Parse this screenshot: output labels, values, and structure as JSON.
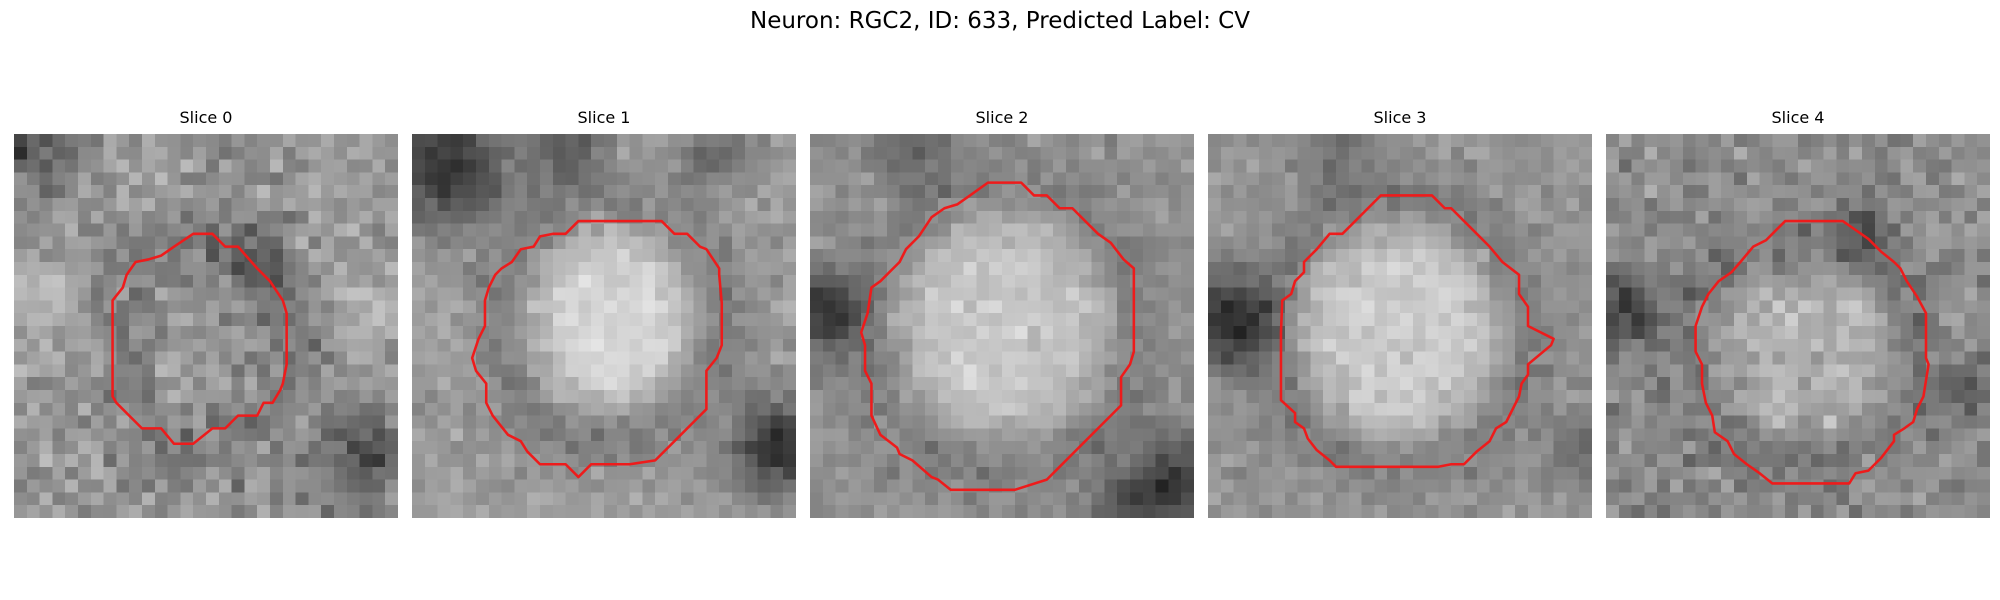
{
  "figure": {
    "title": "Neuron: RGC2, ID: 633, Predicted Label: CV"
  },
  "colors": {
    "contour": "#ee1b1b",
    "colormap": "gray"
  },
  "slices": [
    {
      "title": "Slice 0",
      "seed": 11,
      "base": 150,
      "inner_level": 150,
      "ring_level": 105,
      "ring_width": 2.8,
      "noise": 65,
      "center": [
        15.0,
        16.5
      ],
      "radius": [
        6.6,
        8.2
      ],
      "dark_regions": [
        [
          1.5,
          1.5,
          3.5,
          60
        ],
        [
          27.5,
          25,
          3.5,
          70
        ],
        [
          19,
          10,
          3,
          35
        ]
      ],
      "bright_regions": [
        [
          2,
          12,
          2.5,
          40
        ],
        [
          28,
          14,
          3,
          30
        ]
      ],
      "contour": [
        [
          14,
          7.8
        ],
        [
          15.5,
          7.8
        ],
        [
          16.5,
          8.8
        ],
        [
          17.5,
          8.8
        ],
        [
          19,
          10.5
        ],
        [
          20,
          11.5
        ],
        [
          21,
          13
        ],
        [
          21.3,
          14
        ],
        [
          21.3,
          18
        ],
        [
          21,
          19.5
        ],
        [
          20.8,
          20
        ],
        [
          20.2,
          21
        ],
        [
          19.5,
          21
        ],
        [
          19,
          22
        ],
        [
          17.5,
          22
        ],
        [
          16.5,
          23
        ],
        [
          15.5,
          23
        ],
        [
          14,
          24.2
        ],
        [
          12.5,
          24.2
        ],
        [
          11.5,
          23
        ],
        [
          10,
          23
        ],
        [
          9,
          22
        ],
        [
          8,
          21
        ],
        [
          7.7,
          20.5
        ],
        [
          7.7,
          13
        ],
        [
          8.5,
          12
        ],
        [
          8.8,
          11
        ],
        [
          9.5,
          10
        ],
        [
          10.5,
          9.8
        ],
        [
          11.5,
          9.5
        ],
        [
          12.5,
          8.8
        ]
      ]
    },
    {
      "title": "Slice 1",
      "seed": 23,
      "base": 155,
      "inner_level": 215,
      "ring_level": 110,
      "ring_width": 3.5,
      "noise": 40,
      "center": [
        15.5,
        14.5
      ],
      "radius": [
        8.5,
        9.2
      ],
      "dark_regions": [
        [
          2.5,
          2.5,
          4.5,
          110
        ],
        [
          28.5,
          24.5,
          3.5,
          110
        ],
        [
          12,
          1,
          3,
          60
        ],
        [
          24,
          1.5,
          3,
          40
        ]
      ],
      "bright_regions": [],
      "contour": [
        [
          13,
          6.8
        ],
        [
          19.5,
          6.8
        ],
        [
          20.5,
          7.8
        ],
        [
          21.5,
          7.8
        ],
        [
          22.5,
          8.8
        ],
        [
          23,
          9
        ],
        [
          24,
          10.5
        ],
        [
          24,
          11
        ],
        [
          24.2,
          13.2
        ],
        [
          24.2,
          16.5
        ],
        [
          23.8,
          17.5
        ],
        [
          23,
          18.5
        ],
        [
          23,
          21.5
        ],
        [
          22,
          22.5
        ],
        [
          21,
          23.5
        ],
        [
          20,
          24.5
        ],
        [
          19,
          25.5
        ],
        [
          17,
          25.8
        ],
        [
          14,
          25.8
        ],
        [
          13,
          26.8
        ],
        [
          12,
          25.8
        ],
        [
          10,
          25.8
        ],
        [
          9,
          24.8
        ],
        [
          8.5,
          24
        ],
        [
          7.5,
          23.5
        ],
        [
          6.3,
          22
        ],
        [
          5.8,
          21
        ],
        [
          5.8,
          19.5
        ],
        [
          5,
          18.5
        ],
        [
          4.7,
          17.5
        ],
        [
          5.2,
          16
        ],
        [
          5.7,
          15
        ],
        [
          5.7,
          13
        ],
        [
          6,
          12
        ],
        [
          6.5,
          11
        ],
        [
          7,
          10.5
        ],
        [
          7.8,
          10
        ],
        [
          8.5,
          9
        ],
        [
          9.5,
          8.8
        ],
        [
          10,
          8
        ],
        [
          11,
          7.8
        ],
        [
          12,
          7.8
        ]
      ]
    },
    {
      "title": "Slice 2",
      "seed": 37,
      "base": 145,
      "inner_level": 200,
      "ring_level": 115,
      "ring_width": 3.2,
      "noise": 38,
      "center": [
        15.0,
        15.0
      ],
      "radius": [
        10.5,
        11.0
      ],
      "dark_regions": [
        [
          1,
          14,
          3,
          95
        ],
        [
          29,
          27,
          3.5,
          80
        ],
        [
          8,
          1,
          3,
          45
        ],
        [
          25,
          29,
          3,
          60
        ]
      ],
      "bright_regions": [],
      "contour": [
        [
          13.9,
          3.8
        ],
        [
          16.5,
          3.8
        ],
        [
          17.5,
          4.8
        ],
        [
          18.5,
          4.8
        ],
        [
          19.5,
          5.8
        ],
        [
          20.5,
          5.8
        ],
        [
          21.5,
          6.8
        ],
        [
          22.5,
          7.8
        ],
        [
          23.5,
          8.5
        ],
        [
          24.5,
          9.8
        ],
        [
          25.3,
          10.5
        ],
        [
          25.3,
          17
        ],
        [
          25,
          18
        ],
        [
          24.3,
          19
        ],
        [
          24.3,
          21.2
        ],
        [
          23.5,
          22
        ],
        [
          22.5,
          23
        ],
        [
          21.5,
          24
        ],
        [
          20.5,
          25
        ],
        [
          19.5,
          26
        ],
        [
          18.5,
          27
        ],
        [
          16,
          27.8
        ],
        [
          11,
          27.8
        ],
        [
          10,
          27
        ],
        [
          9.5,
          26.8
        ],
        [
          8,
          25.5
        ],
        [
          7,
          25
        ],
        [
          6.8,
          24.5
        ],
        [
          5.5,
          23.5
        ],
        [
          4.8,
          22
        ],
        [
          4.8,
          19.5
        ],
        [
          4.3,
          18.5
        ],
        [
          4.3,
          16.5
        ],
        [
          4,
          15.5
        ],
        [
          4.5,
          14
        ],
        [
          4.8,
          12
        ],
        [
          5.5,
          11.5
        ],
        [
          6.5,
          10.5
        ],
        [
          7,
          10
        ],
        [
          7.5,
          9
        ],
        [
          8.5,
          8
        ],
        [
          9.5,
          6.5
        ],
        [
          10.5,
          5.8
        ],
        [
          11.5,
          5.5
        ],
        [
          12.5,
          4.8
        ]
      ]
    },
    {
      "title": "Slice 3",
      "seed": 53,
      "base": 150,
      "inner_level": 205,
      "ring_level": 110,
      "ring_width": 3.2,
      "noise": 38,
      "center": [
        15.0,
        15.5
      ],
      "radius": [
        10.0,
        10.5
      ],
      "dark_regions": [
        [
          1.5,
          14.5,
          3.5,
          110
        ],
        [
          29.5,
          25,
          3,
          40
        ],
        [
          10,
          2,
          3,
          35
        ]
      ],
      "bright_regions": [],
      "contour": [
        [
          13.5,
          4.8
        ],
        [
          17.5,
          4.8
        ],
        [
          18.5,
          5.8
        ],
        [
          19,
          5.8
        ],
        [
          20,
          6.8
        ],
        [
          21,
          7.8
        ],
        [
          22,
          8.8
        ],
        [
          23,
          10
        ],
        [
          24.3,
          11
        ],
        [
          24.3,
          12.5
        ],
        [
          25,
          13.5
        ],
        [
          25,
          15
        ],
        [
          27,
          16
        ],
        [
          26.8,
          16.5
        ],
        [
          25,
          18
        ],
        [
          25,
          18.8
        ],
        [
          24.5,
          19.5
        ],
        [
          24.3,
          20.5
        ],
        [
          23.3,
          22.5
        ],
        [
          22.5,
          23
        ],
        [
          22,
          24
        ],
        [
          21,
          24.8
        ],
        [
          20,
          25.8
        ],
        [
          19,
          25.8
        ],
        [
          18,
          26
        ],
        [
          10,
          26
        ],
        [
          9.5,
          25.5
        ],
        [
          8.5,
          24.7
        ],
        [
          7.8,
          23.8
        ],
        [
          7.5,
          23
        ],
        [
          6.8,
          22.5
        ],
        [
          6.8,
          21.8
        ],
        [
          5.7,
          20.8
        ],
        [
          5.7,
          15.5
        ],
        [
          5.8,
          13
        ],
        [
          6.5,
          12.5
        ],
        [
          6.8,
          11.5
        ],
        [
          7.5,
          10.8
        ],
        [
          7.5,
          10
        ],
        [
          8.5,
          9
        ],
        [
          9.5,
          7.8
        ],
        [
          10.5,
          7.8
        ],
        [
          11.5,
          6.8
        ],
        [
          12.5,
          5.8
        ]
      ]
    },
    {
      "title": "Slice 4",
      "seed": 71,
      "base": 140,
      "inner_level": 175,
      "ring_level": 105,
      "ring_width": 2.6,
      "noise": 55,
      "center": [
        15.5,
        17.0
      ],
      "radius": [
        8.8,
        8.8
      ],
      "dark_regions": [
        [
          1.5,
          14,
          3,
          70
        ],
        [
          28,
          20,
          2.5,
          50
        ],
        [
          20,
          7.5,
          2,
          55
        ]
      ],
      "bright_regions": [],
      "contour": [
        [
          14,
          6.8
        ],
        [
          18.5,
          6.8
        ],
        [
          19.5,
          7.5
        ],
        [
          20.5,
          8.2
        ],
        [
          21.5,
          9.2
        ],
        [
          22.5,
          10
        ],
        [
          23,
          10.5
        ],
        [
          23.5,
          11.5
        ],
        [
          24.3,
          12.7
        ],
        [
          25,
          14
        ],
        [
          25,
          17.5
        ],
        [
          25.2,
          18
        ],
        [
          24.8,
          20.5
        ],
        [
          24.3,
          21.5
        ],
        [
          24,
          22.5
        ],
        [
          23.3,
          23
        ],
        [
          22.5,
          23.5
        ],
        [
          22.5,
          24
        ],
        [
          21.5,
          25.3
        ],
        [
          20.5,
          26.3
        ],
        [
          19.5,
          26.5
        ],
        [
          19,
          27.3
        ],
        [
          13,
          27.3
        ],
        [
          12,
          26.5
        ],
        [
          11,
          25.8
        ],
        [
          10,
          25
        ],
        [
          9.5,
          24
        ],
        [
          8.5,
          23.3
        ],
        [
          8.3,
          22
        ],
        [
          7.8,
          21
        ],
        [
          7.5,
          19.5
        ],
        [
          7.5,
          18
        ],
        [
          7,
          17
        ],
        [
          7,
          15
        ],
        [
          7.5,
          13.5
        ],
        [
          8,
          12.5
        ],
        [
          8.8,
          11.5
        ],
        [
          9.8,
          10.8
        ],
        [
          10.5,
          10
        ],
        [
          11.5,
          8.8
        ],
        [
          12.5,
          8.3
        ],
        [
          13,
          7.8
        ]
      ]
    }
  ]
}
